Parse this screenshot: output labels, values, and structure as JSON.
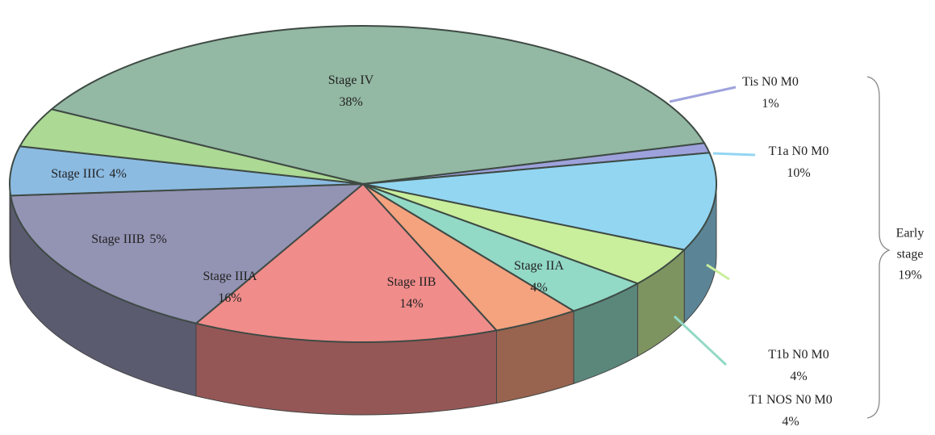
{
  "chart_data": {
    "type": "pie",
    "categories": [
      "Stage IV",
      "Tis N0 M0",
      "T1a N0 M0",
      "T1b N0 M0",
      "T1 NOS N0 M0",
      "Stage IIA",
      "Stage IIB",
      "Stage IIIA",
      "Stage IIIB",
      "Stage IIIC"
    ],
    "values": [
      38,
      1,
      10,
      4,
      4,
      4,
      14,
      16,
      5,
      4
    ],
    "value_labels": [
      "38%",
      "1%",
      "10%",
      "4%",
      "4%",
      "4%",
      "14%",
      "16%",
      "5%",
      "4%"
    ],
    "colors": [
      "#93b8a3",
      "#9ea2dc",
      "#93d6f2",
      "#c9ee9c",
      "#92d9c6",
      "#f5a27f",
      "#f08c8a",
      "#9393b4",
      "#8cbbe2",
      "#acd994"
    ],
    "annotation": [
      "Early",
      "stage",
      "19%"
    ]
  }
}
